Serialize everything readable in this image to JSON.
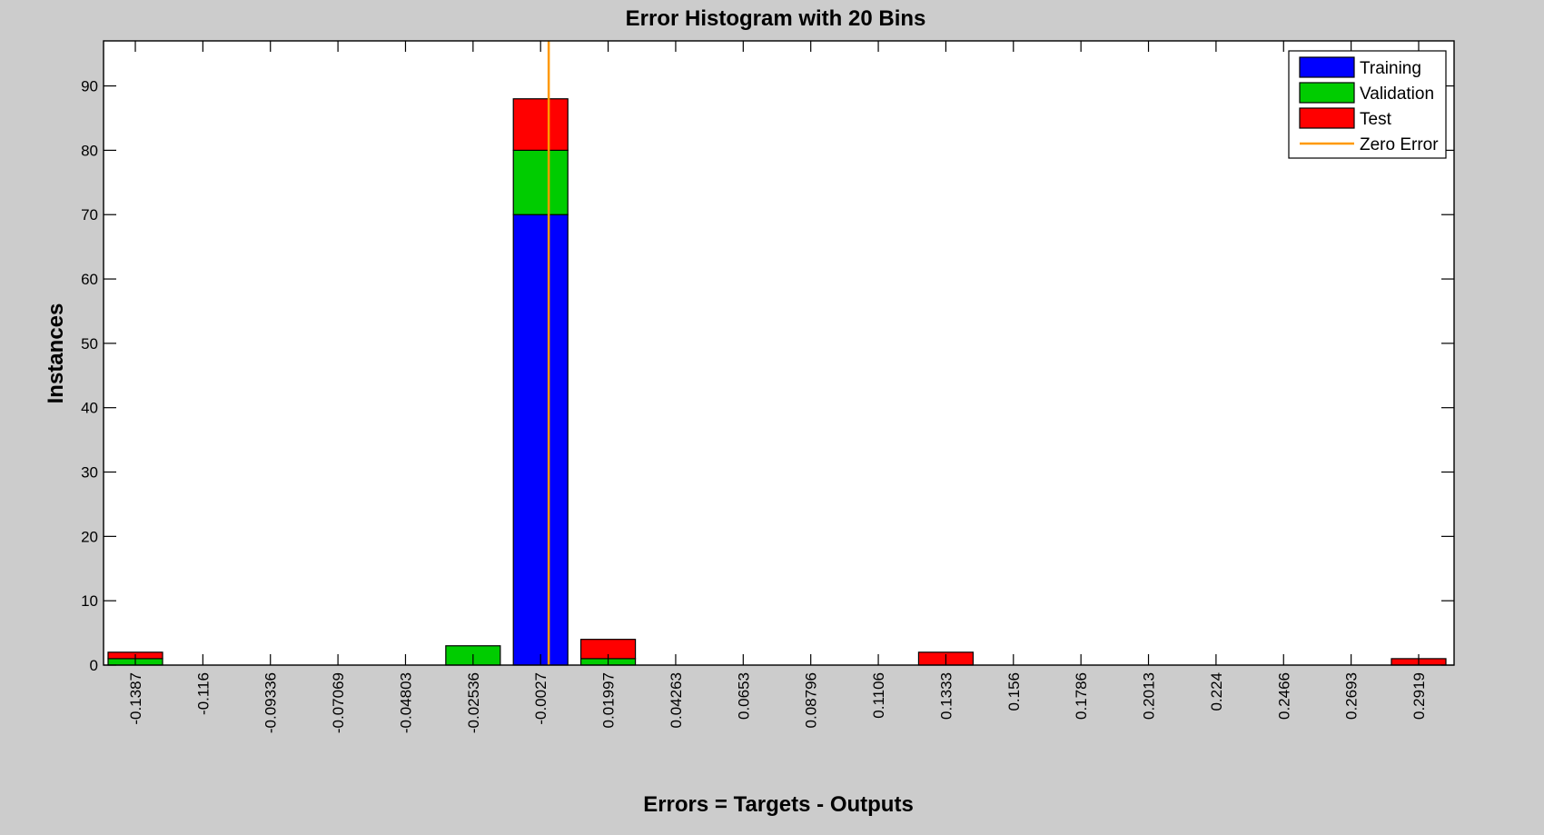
{
  "chart_data": {
    "type": "bar",
    "stacked": true,
    "title": "Error Histogram with 20 Bins",
    "xlabel": "Errors = Targets - Outputs",
    "ylabel": "Instances",
    "categories": [
      "-0.1387",
      "-0.116",
      "-0.09336",
      "-0.07069",
      "-0.04803",
      "-0.02536",
      "-0.0027",
      "0.01997",
      "0.04263",
      "0.0653",
      "0.08796",
      "0.1106",
      "0.1333",
      "0.156",
      "0.1786",
      "0.2013",
      "0.224",
      "0.2466",
      "0.2693",
      "0.2919"
    ],
    "series": [
      {
        "name": "Training",
        "color": "#0000ff",
        "values": [
          0,
          0,
          0,
          0,
          0,
          0,
          70,
          0,
          0,
          0,
          0,
          0,
          0,
          0,
          0,
          0,
          0,
          0,
          0,
          0
        ]
      },
      {
        "name": "Validation",
        "color": "#00cc00",
        "values": [
          1,
          0,
          0,
          0,
          0,
          3,
          10,
          1,
          0,
          0,
          0,
          0,
          0,
          0,
          0,
          0,
          0,
          0,
          0,
          0
        ]
      },
      {
        "name": "Test",
        "color": "#ff0000",
        "values": [
          1,
          0,
          0,
          0,
          0,
          0,
          8,
          3,
          0,
          0,
          0,
          0,
          2,
          0,
          0,
          0,
          0,
          0,
          0,
          1
        ]
      }
    ],
    "zero_error_line": {
      "name": "Zero Error",
      "color": "#ff9900",
      "x": 0
    },
    "ylim": [
      0,
      97
    ],
    "yticks": [
      0,
      10,
      20,
      30,
      40,
      50,
      60,
      70,
      80,
      90
    ],
    "grid": false,
    "legend_position": "top-right"
  }
}
